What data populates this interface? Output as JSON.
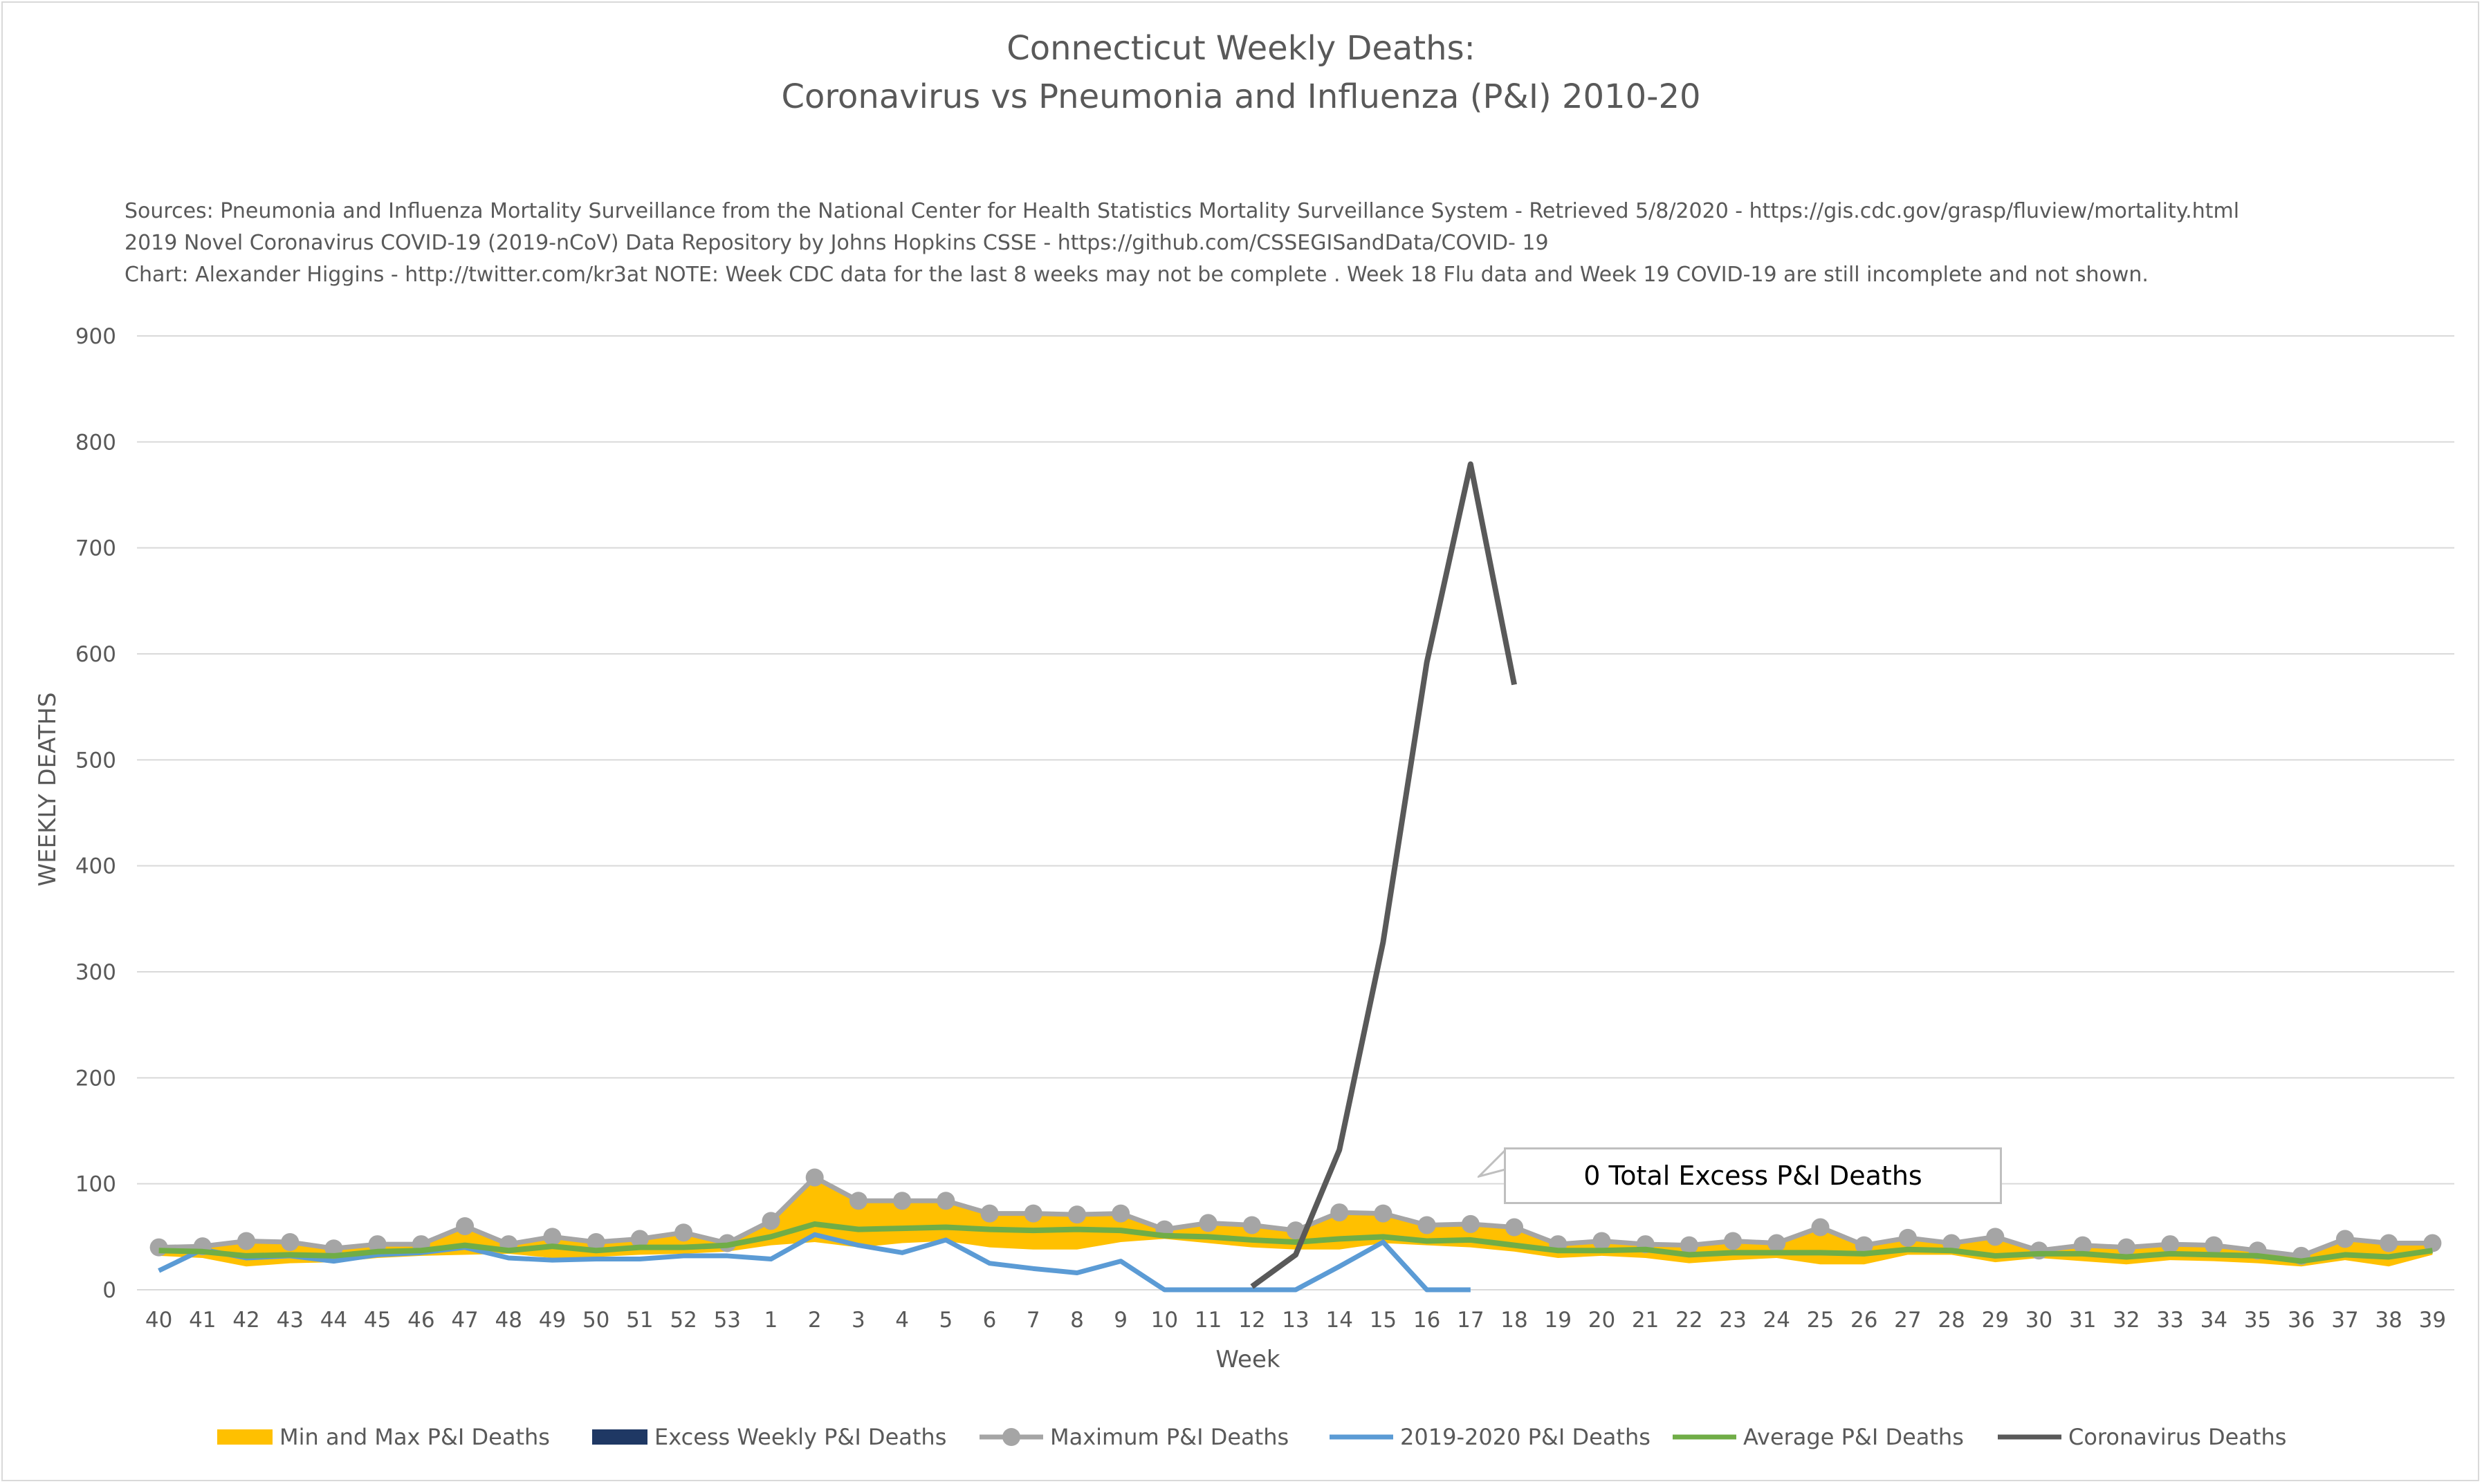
{
  "title_line1": "Connecticut Weekly Deaths:",
  "title_line2": "Coronavirus vs Pneumonia and Influenza (P&I) 2010-20",
  "sources": [
    "Sources: Pneumonia and Influenza Mortality Surveillance from the National Center for Health Statistics Mortality Surveillance System - Retrieved 5/8/2020 - https://gis.cdc.gov/grasp/fluview/mortality.html",
    "2019 Novel Coronavirus COVID-19 (2019-nCoV) Data Repository by Johns Hopkins CSSE - https://github.com/CSSEGISandData/COVID- 19",
    "Chart: Alexander Higgins - http://twitter.com/kr3at   NOTE: Week CDC data for the last 8 weeks may not be complete . Week 18 Flu data and Week 19 COVID-19 are still incomplete and not shown."
  ],
  "callout": "0 Total Excess P&I Deaths",
  "colors": {
    "band": "#ffc000",
    "excess": "#1f3864",
    "max": "#a5a5a5",
    "current": "#5b9bd5",
    "average": "#70ad47",
    "covid": "#595959",
    "grid": "#d9d9d9"
  },
  "chart_data": {
    "type": "line",
    "xlabel": "Week",
    "ylabel": "WEEKLY DEATHS",
    "ylim": [
      0,
      900
    ],
    "yticks": [
      0,
      100,
      200,
      300,
      400,
      500,
      600,
      700,
      800,
      900
    ],
    "categories": [
      "40",
      "41",
      "42",
      "43",
      "44",
      "45",
      "46",
      "47",
      "48",
      "49",
      "50",
      "51",
      "52",
      "53",
      "1",
      "2",
      "3",
      "4",
      "5",
      "6",
      "7",
      "8",
      "9",
      "10",
      "11",
      "12",
      "13",
      "14",
      "15",
      "16",
      "17",
      "18",
      "19",
      "20",
      "21",
      "22",
      "23",
      "24",
      "25",
      "26",
      "27",
      "28",
      "29",
      "30",
      "31",
      "32",
      "33",
      "34",
      "35",
      "36",
      "37",
      "38",
      "39"
    ],
    "series": [
      {
        "name": "Min and Max P&I Deaths",
        "kind": "band",
        "min": [
          32,
          30,
          22,
          25,
          26,
          30,
          32,
          33,
          34,
          30,
          31,
          33,
          34,
          36,
          42,
          45,
          40,
          44,
          46,
          40,
          38,
          38,
          45,
          48,
          44,
          40,
          38,
          38,
          44,
          42,
          40,
          36,
          30,
          32,
          30,
          25,
          28,
          30,
          24,
          24,
          33,
          33,
          26,
          30,
          27,
          24,
          28,
          27,
          25,
          22,
          28,
          22,
          33
        ],
        "max": [
          40,
          41,
          46,
          45,
          39,
          43,
          43,
          60,
          43,
          50,
          45,
          48,
          54,
          44,
          65,
          106,
          84,
          84,
          84,
          72,
          72,
          71,
          72,
          57,
          63,
          61,
          56,
          73,
          72,
          61,
          62,
          59,
          43,
          46,
          43,
          42,
          46,
          44,
          59,
          42,
          49,
          44,
          50,
          37,
          42,
          40,
          43,
          42,
          37,
          32,
          48,
          44,
          44
        ]
      },
      {
        "name": "Excess Weekly P&I Deaths",
        "kind": "bar",
        "values": [
          0,
          0,
          0,
          0,
          0,
          0,
          0,
          0,
          0,
          0,
          0,
          0,
          0,
          0,
          0,
          0,
          0,
          0,
          0,
          0,
          0,
          0,
          0,
          0,
          0,
          0,
          0,
          0,
          0,
          0,
          0,
          0,
          0,
          0,
          0,
          0,
          0,
          0,
          0,
          0,
          0,
          0,
          0,
          0,
          0,
          0,
          0,
          0,
          0,
          0,
          0,
          0,
          0
        ]
      },
      {
        "name": "Maximum P&I Deaths",
        "kind": "line-markers",
        "values": [
          40,
          41,
          46,
          45,
          39,
          43,
          43,
          60,
          43,
          50,
          45,
          48,
          54,
          44,
          65,
          106,
          84,
          84,
          84,
          72,
          72,
          71,
          72,
          57,
          63,
          61,
          56,
          73,
          72,
          61,
          62,
          59,
          43,
          46,
          43,
          42,
          46,
          44,
          59,
          42,
          49,
          44,
          50,
          37,
          42,
          40,
          43,
          42,
          37,
          32,
          48,
          44,
          44
        ]
      },
      {
        "name": "2019-2020 P&I Deaths",
        "kind": "line",
        "values": [
          18,
          38,
          30,
          32,
          27,
          33,
          35,
          40,
          30,
          28,
          29,
          29,
          32,
          32,
          29,
          52,
          42,
          35,
          47,
          25,
          20,
          16,
          27,
          0,
          0,
          0,
          0,
          22,
          45,
          0,
          0,
          null,
          null,
          null,
          null,
          null,
          null,
          null,
          null,
          null,
          null,
          null,
          null,
          null,
          null,
          null,
          null,
          null,
          null,
          null,
          null,
          null,
          null
        ]
      },
      {
        "name": "Average P&I Deaths",
        "kind": "line",
        "values": [
          37,
          36,
          32,
          33,
          32,
          36,
          37,
          42,
          37,
          41,
          37,
          40,
          40,
          42,
          50,
          62,
          57,
          58,
          59,
          57,
          56,
          57,
          56,
          51,
          50,
          47,
          45,
          48,
          50,
          46,
          47,
          42,
          37,
          37,
          38,
          33,
          35,
          35,
          35,
          34,
          38,
          37,
          32,
          34,
          34,
          31,
          34,
          33,
          32,
          27,
          33,
          31,
          37
        ]
      },
      {
        "name": "Coronavirus Deaths",
        "kind": "line",
        "values": [
          null,
          null,
          null,
          null,
          null,
          null,
          null,
          null,
          null,
          null,
          null,
          null,
          null,
          null,
          null,
          null,
          null,
          null,
          null,
          null,
          null,
          null,
          null,
          null,
          null,
          3,
          33,
          132,
          328,
          592,
          779,
          571,
          null,
          null,
          null,
          null,
          null,
          null,
          null,
          null,
          null,
          null,
          null,
          null,
          null,
          null,
          null,
          null,
          null,
          null,
          null,
          null,
          null
        ]
      }
    ]
  }
}
